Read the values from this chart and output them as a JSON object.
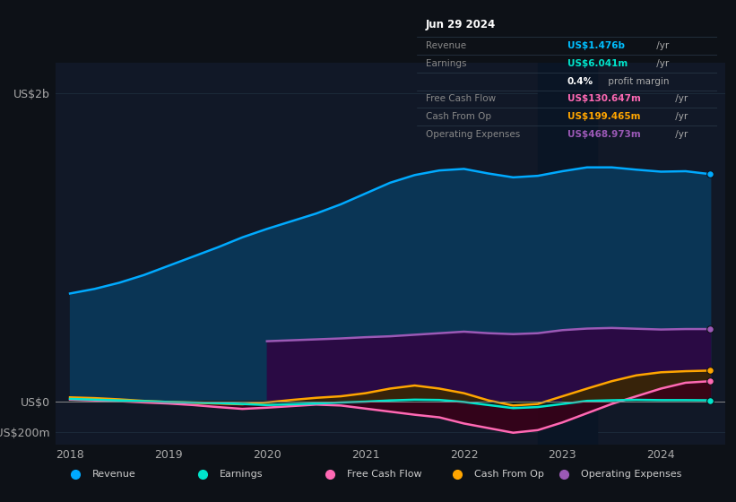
{
  "background_color": "#0d1117",
  "plot_bg_color": "#111827",
  "infobox": {
    "date": "Jun 29 2024",
    "rows": [
      {
        "label": "Revenue",
        "value": "US$1.476b",
        "unit": " /yr",
        "value_color": "#00bfff"
      },
      {
        "label": "Earnings",
        "value": "US$6.041m",
        "unit": " /yr",
        "value_color": "#00e5cc"
      },
      {
        "label": "",
        "value": "0.4%",
        "unit": " profit margin",
        "value_color": "#ffffff"
      },
      {
        "label": "Free Cash Flow",
        "value": "US$130.647m",
        "unit": " /yr",
        "value_color": "#ff69b4"
      },
      {
        "label": "Cash From Op",
        "value": "US$199.465m",
        "unit": " /yr",
        "value_color": "#ffa500"
      },
      {
        "label": "Operating Expenses",
        "value": "US$468.973m",
        "unit": " /yr",
        "value_color": "#9b59b6"
      }
    ]
  },
  "x": [
    2018.0,
    2018.25,
    2018.5,
    2018.75,
    2019.0,
    2019.25,
    2019.5,
    2019.75,
    2020.0,
    2020.25,
    2020.5,
    2020.75,
    2021.0,
    2021.25,
    2021.5,
    2021.75,
    2022.0,
    2022.25,
    2022.5,
    2022.75,
    2023.0,
    2023.25,
    2023.5,
    2023.75,
    2024.0,
    2024.25,
    2024.5
  ],
  "revenue": [
    700,
    730,
    770,
    820,
    880,
    940,
    1000,
    1065,
    1120,
    1170,
    1220,
    1280,
    1350,
    1420,
    1470,
    1500,
    1510,
    1480,
    1455,
    1465,
    1495,
    1520,
    1520,
    1505,
    1492,
    1495,
    1476
  ],
  "earnings": [
    15,
    10,
    5,
    0,
    -5,
    -8,
    -12,
    -18,
    -25,
    -20,
    -15,
    -8,
    -3,
    5,
    10,
    8,
    -5,
    -25,
    -45,
    -38,
    -18,
    2,
    6,
    9,
    7,
    7,
    6
  ],
  "free_cash": [
    10,
    5,
    0,
    -8,
    -15,
    -25,
    -38,
    -50,
    -42,
    -32,
    -22,
    -28,
    -48,
    -68,
    -88,
    -105,
    -145,
    -175,
    -205,
    -188,
    -138,
    -78,
    -18,
    32,
    82,
    120,
    130
  ],
  "cash_from_op": [
    25,
    20,
    12,
    2,
    -5,
    -10,
    -15,
    -20,
    -8,
    8,
    22,
    32,
    52,
    82,
    102,
    82,
    52,
    5,
    -28,
    -18,
    32,
    82,
    130,
    168,
    188,
    195,
    199
  ],
  "op_expenses": [
    null,
    null,
    null,
    null,
    null,
    null,
    null,
    null,
    390,
    396,
    402,
    408,
    416,
    422,
    432,
    442,
    452,
    442,
    436,
    442,
    462,
    472,
    476,
    471,
    466,
    469,
    469
  ],
  "revenue_color": "#00aaff",
  "revenue_fill": "#0a3555",
  "earnings_color": "#00e5cc",
  "free_cash_color": "#ff69b4",
  "cash_from_op_color": "#ffa500",
  "op_expenses_color": "#9b59b6",
  "op_expenses_fill": "#2a0a44",
  "ylim": [
    -280,
    2200
  ],
  "yticks": [
    -200,
    0,
    2000
  ],
  "ytick_labels": [
    "-US$200m",
    "US$0",
    "US$2b"
  ],
  "xlim": [
    2017.85,
    2024.65
  ],
  "xticks": [
    2018,
    2019,
    2020,
    2021,
    2022,
    2023,
    2024
  ],
  "grid_color": "#1e2d3d",
  "highlight_start": 2022.75,
  "highlight_end": 2023.35,
  "legend_items": [
    {
      "label": "Revenue",
      "color": "#00aaff"
    },
    {
      "label": "Earnings",
      "color": "#00e5cc"
    },
    {
      "label": "Free Cash Flow",
      "color": "#ff69b4"
    },
    {
      "label": "Cash From Op",
      "color": "#ffa500"
    },
    {
      "label": "Operating Expenses",
      "color": "#9b59b6"
    }
  ]
}
